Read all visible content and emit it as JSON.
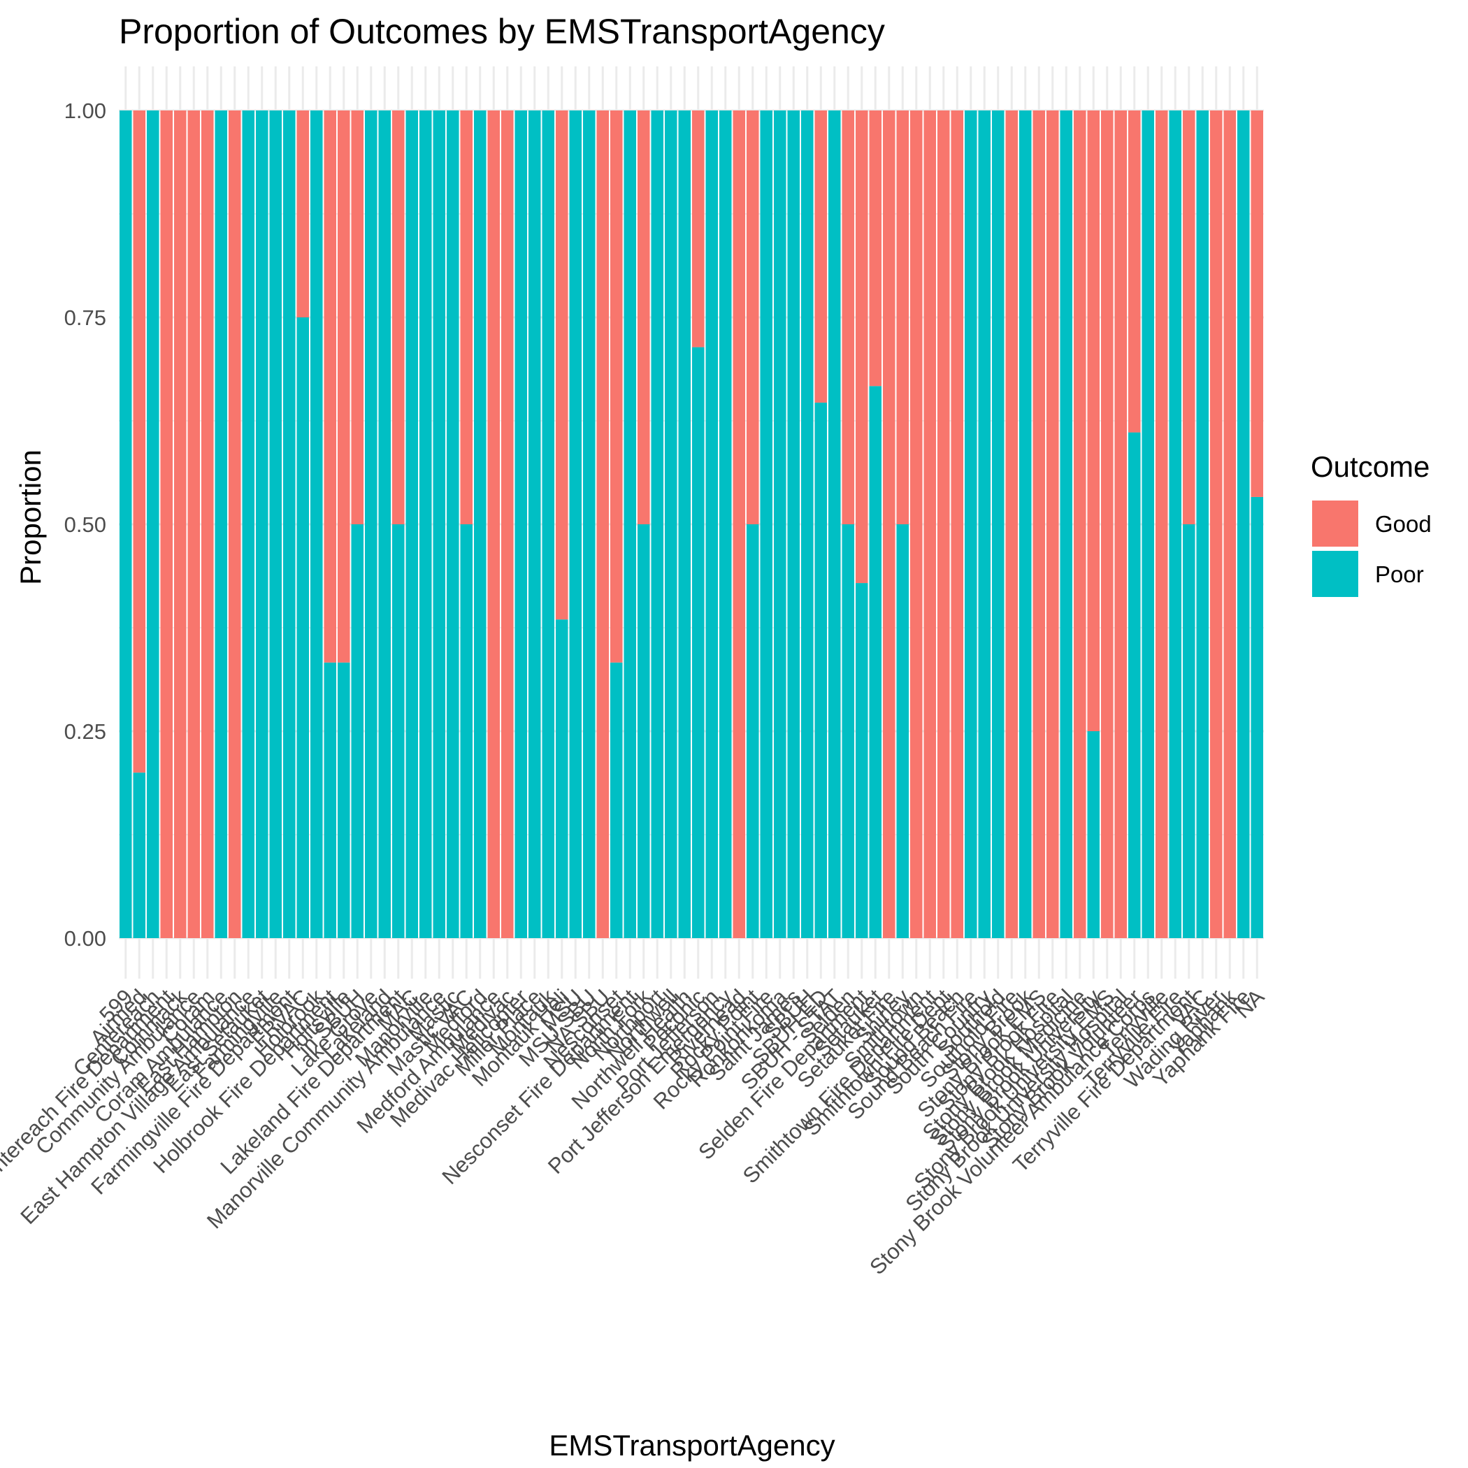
{
  "chart_data": {
    "type": "bar",
    "stacked": true,
    "normalized": true,
    "title": "Proportion of Outcomes by EMSTransportAgency",
    "xlabel": "EMSTransportAgency",
    "ylabel": "Proportion",
    "ylim": [
      0,
      1
    ],
    "yticks": [
      "0.00",
      "0.25",
      "0.50",
      "0.75",
      "1.00"
    ],
    "grid": true,
    "legend": {
      "title": "Outcome",
      "placement": "right",
      "entries": [
        {
          "name": "Good",
          "color": "#F8766D"
        },
        {
          "name": "Poor",
          "color": "#00BFC4"
        }
      ]
    },
    "categories": [
      "599",
      "Airmed",
      "Centereach",
      "Centereach Fire Department",
      "Commack",
      "Community Ambulance",
      "Coram",
      "Coram Ambulance",
      "East Hampton",
      "East Hampton Village Ambulance",
      "East Setauket",
      "Farmingville",
      "Farmingville Fire Department",
      "FRVAC",
      "Holbrook",
      "Holbrook Fire Department",
      "Holtsville",
      "in SBUH",
      "Lake Grove",
      "Lakeland",
      "Lakeland Fire Department",
      "MAC",
      "Manorville",
      "Manorville Community Ambulance",
      "Mastic",
      "Mastic VAC",
      "Medford",
      "Medford Ambulance",
      "Medivac",
      "Medivac Helicopter",
      "Miller Place",
      "Montauk",
      "Montauk Heli",
      "MSU",
      "MSU SBU",
      "NA SBU",
      "Nesconset",
      "Nesconset Fire Department",
      "North Fork",
      "Northport",
      "Northwell",
      "Northwell Health",
      "Peconic",
      "Port Jefferson",
      "Port Jefferson Emergency",
      "Riverhead",
      "Rocky Point",
      "Rocky Point Fire",
      "Ronkonkoma",
      "Saint James",
      "SBUH",
      "SBUH ED",
      "SBUH - STAT",
      "Selden",
      "Selden Fire Department",
      "Setauket",
      "Setauket Fire",
      "Shirley",
      "Smithtown",
      "Smithtown Fire Department",
      "Smithtown Fire Dept",
      "Sound Beach",
      "Sound Beach Fire",
      "South Country",
      "Southold",
      "Southold Fire",
      "Stony Brook",
      "Stony Brook EMS",
      "Stony Brook Fire",
      "Stony Brook Hospital",
      "Stony Brook Medicine",
      "Stony Brook University",
      "Stony Brook University EMS",
      "Stony Brook University Hospital",
      "Stony Brook Volunteer",
      "Stony Brook Volunteer Ambulance Corps",
      "Terryville",
      "Terryville Fire",
      "Terryville Fire Department",
      "VAC",
      "Wading River",
      "Yaphank",
      "Yaphank Fire",
      "NA"
    ],
    "series": [
      {
        "name": "Good",
        "values": [
          0,
          0.8,
          0,
          1,
          1,
          1,
          1,
          0,
          1,
          0,
          0,
          0,
          0,
          0.25,
          0,
          0.667,
          0.667,
          0.5,
          0,
          0,
          0.5,
          0,
          0,
          0,
          0,
          0.5,
          0,
          1,
          1,
          0,
          0,
          0,
          0.615,
          0,
          0,
          1,
          0.667,
          0,
          0.5,
          0,
          0,
          0,
          0.286,
          0,
          0,
          1,
          0.5,
          0,
          0,
          0,
          0,
          0.353,
          0,
          0.5,
          0.571,
          0.333,
          1,
          0.5,
          1,
          1,
          1,
          1,
          0,
          0,
          0,
          1,
          0,
          1,
          1,
          0,
          1,
          0.75,
          1,
          1,
          0.389,
          0,
          1,
          0,
          0.5,
          0,
          1,
          1,
          0,
          0.467
        ]
      },
      {
        "name": "Poor",
        "values": [
          1,
          0.2,
          1,
          0,
          0,
          0,
          0,
          1,
          0,
          1,
          1,
          1,
          1,
          0.75,
          1,
          0.333,
          0.333,
          0.5,
          1,
          1,
          0.5,
          1,
          1,
          1,
          1,
          0.5,
          1,
          0,
          0,
          1,
          1,
          1,
          0.385,
          1,
          1,
          0,
          0.333,
          1,
          0.5,
          1,
          1,
          1,
          0.714,
          1,
          1,
          0,
          0.5,
          1,
          1,
          1,
          1,
          0.647,
          1,
          0.5,
          0.429,
          0.667,
          0,
          0.5,
          0,
          0,
          0,
          0,
          1,
          1,
          1,
          0,
          1,
          0,
          0,
          1,
          0,
          0.25,
          0,
          0,
          0.611,
          1,
          0,
          1,
          0.5,
          1,
          0,
          0,
          1,
          0.533
        ]
      }
    ]
  }
}
